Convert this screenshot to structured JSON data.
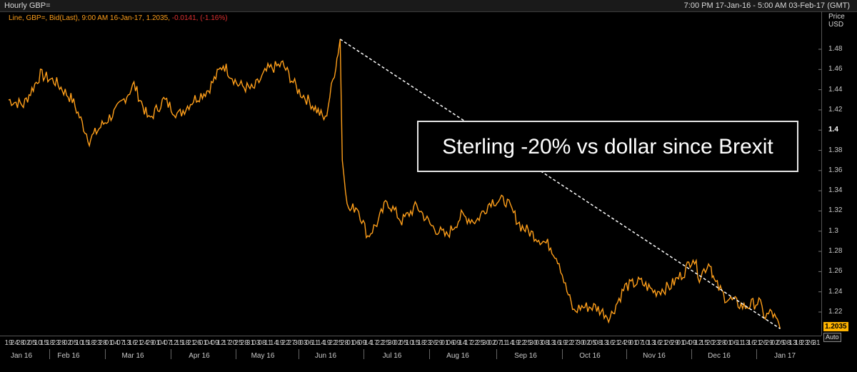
{
  "window": {
    "title": "Hourly GBP=",
    "time_range": "7:00 PM 17-Jan-16 - 5:00 AM 03-Feb-17 (GMT)"
  },
  "legend": {
    "main": "Line, GBP=, Bid(Last), 9:00 AM 16-Jan-17, 1.2035,",
    "change": "-0.0141, (-1.16%)"
  },
  "y_axis": {
    "title_line1": "Price",
    "title_line2": "USD",
    "ticks": [
      "1.48",
      "1.46",
      "1.44",
      "1.42",
      "1.4",
      "1.38",
      "1.36",
      "1.34",
      "1.32",
      "1.3",
      "1.28",
      "1.26",
      "1.24",
      "1.22"
    ],
    "bold_tick": "1.4",
    "last_value": "1.2035",
    "auto_label": "Auto"
  },
  "x_axis": {
    "day_ticks": [
      "19",
      "24",
      "28",
      "02",
      "05",
      "10",
      "15",
      "18",
      "23",
      "28",
      "02",
      "05",
      "10",
      "15",
      "18",
      "23",
      "28",
      "01",
      "04",
      "07",
      "13",
      "16",
      "21",
      "24",
      "29",
      "01",
      "04",
      "07",
      "12",
      "15",
      "18",
      "21",
      "26",
      "01",
      "04",
      "09",
      "12",
      "17",
      "20",
      "25",
      "28",
      "31",
      "03",
      "08",
      "11",
      "14",
      "19",
      "22",
      "27",
      "30",
      "03",
      "06",
      "11",
      "14",
      "19",
      "22",
      "25",
      "28",
      "01",
      "06",
      "09",
      "14",
      "17",
      "22",
      "25",
      "30",
      "02",
      "05",
      "10",
      "15",
      "18",
      "23",
      "26",
      "29",
      "01",
      "06",
      "09",
      "14",
      "17",
      "22",
      "25",
      "30",
      "02",
      "07",
      "11",
      "14",
      "19",
      "22",
      "25",
      "30",
      "03",
      "08",
      "13",
      "16",
      "19",
      "22",
      "27",
      "30",
      "02",
      "05",
      "08",
      "13",
      "16",
      "21",
      "24",
      "29",
      "01",
      "07",
      "10",
      "13",
      "16",
      "21",
      "26",
      "29",
      "01",
      "04",
      "09",
      "12",
      "15",
      "20",
      "23",
      "28",
      "01",
      "06",
      "11",
      "13",
      "16",
      "21",
      "26",
      "29",
      "02",
      "05",
      "08",
      "13",
      "18",
      "23",
      "26",
      "31"
    ],
    "months": [
      "Jan 16",
      "Feb 16",
      "Mar 16",
      "Apr 16",
      "May 16",
      "Jun 16",
      "Jul 16",
      "Aug 16",
      "Sep 16",
      "Oct 16",
      "Nov 16",
      "Dec 16",
      "Jan 17"
    ]
  },
  "annotation": {
    "text": "Sterling -20% vs dollar since Brexit"
  },
  "colors": {
    "series": "#ff9f1a",
    "trend": "#ffffff",
    "grid": "#2a2a2a",
    "background": "#000000"
  },
  "chart_data": {
    "type": "line",
    "series": [
      {
        "name": "GBP=",
        "x": [
          "2016-01-19",
          "2016-01-26",
          "2016-02-03",
          "2016-02-10",
          "2016-02-18",
          "2016-02-26",
          "2016-03-03",
          "2016-03-10",
          "2016-03-18",
          "2016-03-25",
          "2016-04-01",
          "2016-04-08",
          "2016-04-15",
          "2016-04-22",
          "2016-04-29",
          "2016-05-06",
          "2016-05-13",
          "2016-05-20",
          "2016-05-27",
          "2016-06-03",
          "2016-06-10",
          "2016-06-16",
          "2016-06-21",
          "2016-06-23",
          "2016-06-24",
          "2016-06-27",
          "2016-07-01",
          "2016-07-06",
          "2016-07-11",
          "2016-07-15",
          "2016-07-22",
          "2016-07-29",
          "2016-08-05",
          "2016-08-12",
          "2016-08-19",
          "2016-08-26",
          "2016-09-02",
          "2016-09-09",
          "2016-09-16",
          "2016-09-23",
          "2016-09-30",
          "2016-10-04",
          "2016-10-07",
          "2016-10-11",
          "2016-10-14",
          "2016-10-21",
          "2016-10-28",
          "2016-11-04",
          "2016-11-11",
          "2016-11-18",
          "2016-11-25",
          "2016-12-02",
          "2016-12-06",
          "2016-12-09",
          "2016-12-14",
          "2016-12-16",
          "2016-12-21",
          "2016-12-30",
          "2017-01-06",
          "2017-01-09",
          "2017-01-12",
          "2017-01-16"
        ],
        "y": [
          1.43,
          1.425,
          1.455,
          1.448,
          1.43,
          1.39,
          1.405,
          1.42,
          1.445,
          1.41,
          1.43,
          1.415,
          1.43,
          1.44,
          1.465,
          1.445,
          1.44,
          1.46,
          1.465,
          1.44,
          1.425,
          1.41,
          1.465,
          1.49,
          1.37,
          1.32,
          1.325,
          1.295,
          1.31,
          1.33,
          1.31,
          1.325,
          1.305,
          1.295,
          1.315,
          1.31,
          1.33,
          1.33,
          1.305,
          1.295,
          1.285,
          1.27,
          1.245,
          1.22,
          1.225,
          1.225,
          1.215,
          1.245,
          1.25,
          1.24,
          1.245,
          1.26,
          1.275,
          1.255,
          1.27,
          1.25,
          1.235,
          1.225,
          1.23,
          1.215,
          1.22,
          1.2035
        ]
      }
    ],
    "ylim": [
      1.2,
      1.5
    ],
    "xlim": [
      "2016-01-17",
      "2017-02-03"
    ],
    "trendline": {
      "x": [
        "2016-06-23",
        "2017-01-16"
      ],
      "y": [
        1.49,
        1.2035
      ]
    },
    "grid": false,
    "xlabel": "",
    "ylabel": "Price USD"
  }
}
